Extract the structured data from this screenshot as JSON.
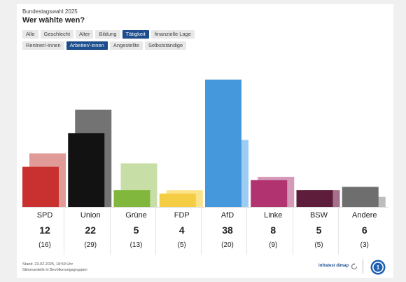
{
  "header": {
    "overline": "Bundestagswahl 2025",
    "title": "Wer wählte wen?"
  },
  "filters": {
    "row1": [
      {
        "label": "Alle",
        "active": false
      },
      {
        "label": "Geschlecht",
        "active": false
      },
      {
        "label": "Alter",
        "active": false
      },
      {
        "label": "Bildung",
        "active": false
      },
      {
        "label": "Tätigkeit",
        "active": true
      },
      {
        "label": "finanzielle Lage",
        "active": false
      }
    ],
    "row2": [
      {
        "label": "Rentner/-innen",
        "active": false
      },
      {
        "label": "Arbeiter/-innen",
        "active": true
      },
      {
        "label": "Angestellte",
        "active": false
      },
      {
        "label": "Selbstständige",
        "active": false
      }
    ]
  },
  "chart_data": {
    "type": "bar",
    "categories": [
      "SPD",
      "Union",
      "Grüne",
      "FDP",
      "AfD",
      "Linke",
      "BSW",
      "Andere"
    ],
    "series": [
      {
        "values": [
          12,
          22,
          5,
          4,
          38,
          8,
          5,
          6
        ]
      },
      {
        "values": [
          16,
          29,
          13,
          5,
          20,
          9,
          5,
          3
        ]
      }
    ],
    "value_labels": [
      "12",
      "22",
      "5",
      "4",
      "38",
      "8",
      "5",
      "6"
    ],
    "prev_labels": [
      "(16)",
      "(29)",
      "(13)",
      "(5)",
      "(20)",
      "(9)",
      "(5)",
      "(3)"
    ],
    "colors": {
      "current": [
        "#c8312f",
        "#121212",
        "#82b73d",
        "#f5cd45",
        "#4698dc",
        "#b13471",
        "#5e1d3a",
        "#6e6e6e"
      ],
      "previous": [
        "#e09a97",
        "#737373",
        "#c7dea6",
        "#fbe38a",
        "#9cccf2",
        "#d59ab8",
        "#a5708c",
        "#bdbdbd"
      ]
    },
    "ylim": [
      0,
      40
    ],
    "grid": false
  },
  "footer": {
    "line1": "Stand: 23.02.2025, 18:59 Uhr",
    "line2": "Stimmanteile in Bevölkerungsgruppen"
  },
  "brand": {
    "name": "infratest dimap"
  }
}
